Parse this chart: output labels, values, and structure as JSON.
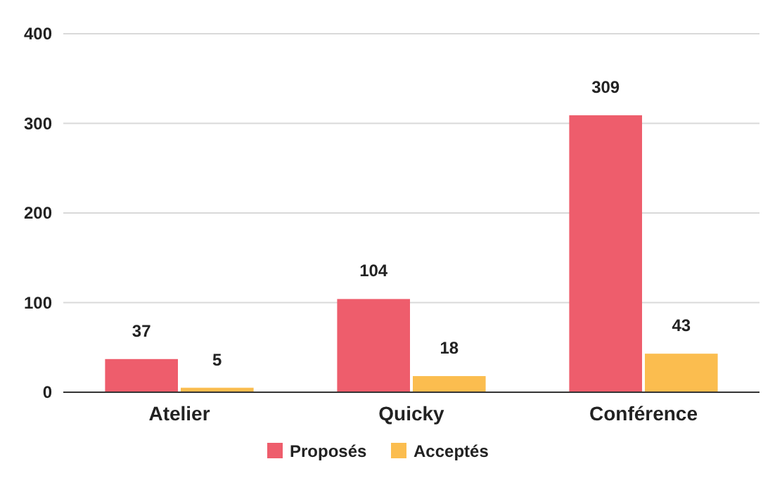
{
  "chart_data": {
    "type": "bar",
    "categories": [
      "Atelier",
      "Quicky",
      "Conférence"
    ],
    "series": [
      {
        "name": "Proposés",
        "color": "#ee5d6c",
        "values": [
          37,
          104,
          309
        ]
      },
      {
        "name": "Acceptés",
        "color": "#fbbd4f",
        "values": [
          5,
          18,
          43
        ]
      }
    ],
    "ylim": [
      0,
      400
    ],
    "yticks": [
      0,
      100,
      200,
      300,
      400
    ],
    "grid": "y",
    "legend": "bottom",
    "data_labels": true
  }
}
